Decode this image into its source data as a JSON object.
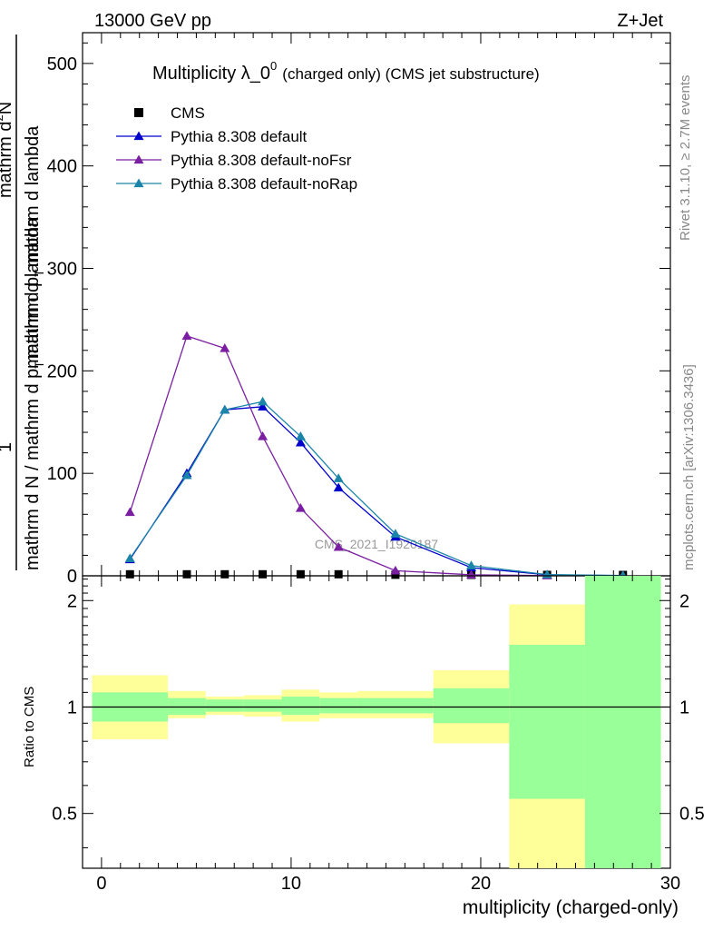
{
  "header": {
    "left": "13000 GeV pp",
    "right": "Z+Jet"
  },
  "side": {
    "rivet": "Rivet 3.1.10, ≥ 2.7M events",
    "mcplots": "mcplots.cern.ch [arXiv:1306.3436]"
  },
  "main_plot": {
    "title_main": "Multiplicity λ_0",
    "title_sup": "0",
    "title_note": "(charged only) (CMS jet substructure)",
    "watermark": "CMS_2021_I1920187",
    "ylabel_top_num": "mathrm d",
    "ylabel_top_sup": "2",
    "ylabel_top_n": "N",
    "ylabel_top_den": "mathrm d p",
    "ylabel_top_den_sub": "T",
    "ylabel_top_den_rest": "mathrm d lambda",
    "ylabel_one": "1",
    "ylabel_bot_den": "mathrm d N / mathrm d p",
    "ylabel_bot_den_sub": "T",
    "ylabel_bot_den_rest": "mathrm d lambda"
  },
  "ratio_plot": {
    "ylabel": "Ratio to CMS"
  },
  "chart_data": [
    {
      "type": "line",
      "panel": "main",
      "xlabel": "multiplicity (charged-only)",
      "xlim": [
        -1,
        30
      ],
      "ylim": [
        0,
        530
      ],
      "x_ticks": [
        0,
        10,
        20,
        30
      ],
      "y_ticks": [
        0,
        100,
        200,
        300,
        400,
        500
      ],
      "legend_position": "top-left",
      "series": [
        {
          "name": "CMS",
          "color": "#000000",
          "marker": "square",
          "x": [
            1.5,
            4.5,
            6.5,
            8.5,
            10.5,
            12.5,
            15.5,
            19.5,
            23.5,
            27.5
          ],
          "values": [
            1.5,
            1.5,
            1.5,
            1.5,
            1.5,
            1.5,
            1.0,
            0.5,
            0.3,
            0.2
          ]
        },
        {
          "name": "Pythia 8.308 default",
          "color": "#0000cc",
          "marker": "triangle",
          "x": [
            1.5,
            4.5,
            6.5,
            8.5,
            10.5,
            12.5,
            15.5,
            19.5,
            23.5,
            27.5
          ],
          "values": [
            16,
            100,
            162,
            165,
            130,
            86,
            38,
            8,
            1,
            0.2
          ]
        },
        {
          "name": "Pythia 8.308 default-noFsr",
          "color": "#7b1fa2",
          "marker": "triangle",
          "x": [
            1.5,
            4.5,
            6.5,
            8.5,
            10.5,
            12.5,
            15.5,
            19.5,
            23.5,
            27.5
          ],
          "values": [
            62,
            234,
            222,
            136,
            66,
            28,
            5,
            1,
            0.2,
            0.1
          ]
        },
        {
          "name": "Pythia 8.308 default-noRap",
          "color": "#1a85a8",
          "marker": "triangle",
          "x": [
            1.5,
            4.5,
            6.5,
            8.5,
            10.5,
            12.5,
            15.5,
            19.5,
            23.5,
            27.5
          ],
          "values": [
            17,
            98,
            162,
            170,
            136,
            95,
            41,
            10,
            1.2,
            0.3
          ]
        }
      ]
    },
    {
      "type": "area",
      "panel": "ratio",
      "ylabel": "Ratio to CMS",
      "ylim": [
        0.35,
        2.35
      ],
      "y_ticks": [
        0.5,
        1,
        2
      ],
      "reference_line": 1,
      "bins": [
        {
          "lo": -0.5,
          "hi": 3.5,
          "inner": [
            0.91,
            1.1
          ],
          "outer": [
            0.81,
            1.23
          ]
        },
        {
          "lo": 3.5,
          "hi": 5.5,
          "inner": [
            0.95,
            1.06
          ],
          "outer": [
            0.93,
            1.11
          ]
        },
        {
          "lo": 5.5,
          "hi": 7.5,
          "inner": [
            0.97,
            1.05
          ],
          "outer": [
            0.95,
            1.07
          ]
        },
        {
          "lo": 7.5,
          "hi": 9.5,
          "inner": [
            0.97,
            1.05
          ],
          "outer": [
            0.94,
            1.08
          ]
        },
        {
          "lo": 9.5,
          "hi": 11.5,
          "inner": [
            0.95,
            1.07
          ],
          "outer": [
            0.91,
            1.12
          ]
        },
        {
          "lo": 11.5,
          "hi": 13.5,
          "inner": [
            0.96,
            1.06
          ],
          "outer": [
            0.93,
            1.1
          ]
        },
        {
          "lo": 13.5,
          "hi": 17.5,
          "inner": [
            0.96,
            1.06
          ],
          "outer": [
            0.93,
            1.11
          ]
        },
        {
          "lo": 17.5,
          "hi": 21.5,
          "inner": [
            0.9,
            1.13
          ],
          "outer": [
            0.79,
            1.27
          ]
        },
        {
          "lo": 21.5,
          "hi": 25.5,
          "inner": [
            0.55,
            1.5
          ],
          "outer": [
            0.35,
            1.95
          ]
        },
        {
          "lo": 25.5,
          "hi": 29.5,
          "inner": [
            0.35,
            2.35
          ],
          "outer": [
            0.35,
            2.35
          ]
        }
      ],
      "inner_color": "#99ff99",
      "outer_color": "#ffff99"
    }
  ]
}
